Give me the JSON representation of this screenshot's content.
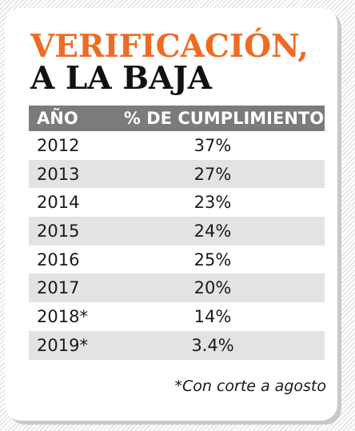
{
  "title": {
    "line1": "VERIFICACIÓN,",
    "line2": "A LA BAJA",
    "accent_color": "#ef6b23"
  },
  "chart_data": {
    "type": "table",
    "columns": [
      "AÑO",
      "% DE CUMPLIMIENTO"
    ],
    "rows": [
      {
        "year": "2012",
        "value": "37%"
      },
      {
        "year": "2013",
        "value": "27%"
      },
      {
        "year": "2014",
        "value": "23%"
      },
      {
        "year": "2015",
        "value": "24%"
      },
      {
        "year": "2016",
        "value": "25%"
      },
      {
        "year": "2017",
        "value": "20%"
      },
      {
        "year": "2018*",
        "value": "14%"
      },
      {
        "year": "2019*",
        "value": "3.4%"
      }
    ],
    "header_color": "#7b7a7c",
    "stripe_color": "#e3e3e3"
  },
  "footnote": "*Con corte a agosto"
}
